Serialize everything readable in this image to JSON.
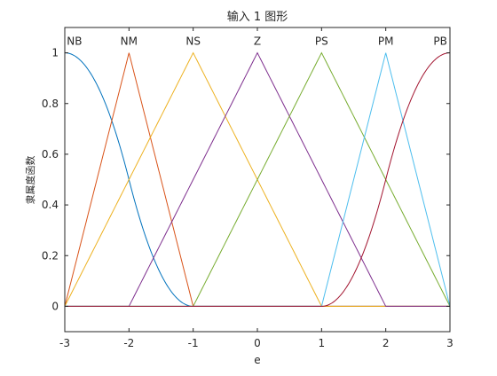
{
  "chart_data": {
    "type": "line",
    "title": "输入 1 图形",
    "xlabel": "e",
    "ylabel": "隶属度函数",
    "xlim": [
      -3,
      3
    ],
    "ylim": [
      -0.1,
      1.1
    ],
    "xticks": [
      -3,
      -2,
      -1,
      0,
      1,
      2,
      3
    ],
    "yticks": [
      0,
      0.2,
      0.4,
      0.6,
      0.8,
      1
    ],
    "xtick_labels": [
      "-3",
      "-2",
      "-1",
      "0",
      "1",
      "2",
      "3"
    ],
    "ytick_labels": [
      "0",
      "0.2",
      "0.4",
      "0.6",
      "0.8",
      "1"
    ],
    "grid": false,
    "series": [
      {
        "name": "NB",
        "shape": "zmf",
        "params": [
          -3,
          -1
        ],
        "color": "#0072BD",
        "label_x": -2.85
      },
      {
        "name": "NM",
        "shape": "trimf",
        "params": [
          -3,
          -2,
          -1
        ],
        "color": "#D95319",
        "label_x": -2.0
      },
      {
        "name": "NS",
        "shape": "trimf",
        "params": [
          -3,
          -1,
          1
        ],
        "color": "#EDB120",
        "label_x": -1.0
      },
      {
        "name": "Z",
        "shape": "trimf",
        "params": [
          -2,
          0,
          2
        ],
        "color": "#7E2F8E",
        "label_x": 0.0
      },
      {
        "name": "PS",
        "shape": "trimf",
        "params": [
          -1,
          1,
          3
        ],
        "color": "#77AC30",
        "label_x": 1.0
      },
      {
        "name": "PM",
        "shape": "trimf",
        "params": [
          1,
          2,
          3
        ],
        "color": "#4DBEEE",
        "label_x": 2.0
      },
      {
        "name": "PB",
        "shape": "smf",
        "params": [
          1,
          3
        ],
        "color": "#A2142F",
        "label_x": 2.85
      }
    ]
  }
}
